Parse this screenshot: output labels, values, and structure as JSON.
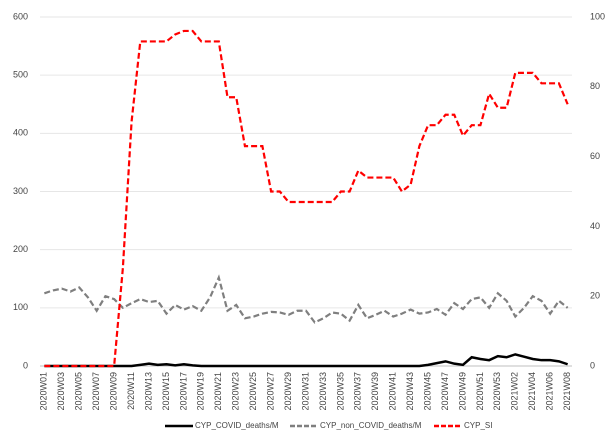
{
  "chart_data": {
    "type": "line",
    "categories": [
      "2020W01",
      null,
      "2020W03",
      null,
      "2020W05",
      null,
      "2020W07",
      null,
      "2020W09",
      null,
      "2020W11",
      null,
      "2020W13",
      null,
      "2020W15",
      null,
      "2020W17",
      null,
      "2020W19",
      null,
      "2020W21",
      null,
      "2020W23",
      null,
      "2020W25",
      null,
      "2020W27",
      null,
      "2020W29",
      null,
      "2020W31",
      null,
      "2020W33",
      null,
      "2020W35",
      null,
      "2020W37",
      null,
      "2020W39",
      null,
      "2020W41",
      null,
      "2020W43",
      null,
      "2020W45",
      null,
      "2020W47",
      null,
      "2020W49",
      null,
      "2020W51",
      null,
      "2020W53",
      null,
      "2021W02",
      null,
      "2021W04",
      null,
      "2021W06",
      null,
      "2021W08"
    ],
    "series": [
      {
        "name": "CYP_COVID_deaths/M",
        "color": "#000000",
        "line_style": "solid",
        "axis": "y",
        "values": [
          0,
          0,
          0,
          0,
          0,
          0,
          0,
          0,
          0,
          0,
          0,
          2,
          4,
          2,
          3,
          1,
          3,
          1,
          0,
          0,
          0,
          0,
          0,
          0,
          0,
          0,
          0,
          0,
          0,
          0,
          0,
          0,
          0,
          0,
          0,
          0,
          0,
          0,
          0,
          0,
          0,
          0,
          0,
          0,
          2,
          5,
          8,
          4,
          2,
          15,
          12,
          10,
          17,
          15,
          20,
          16,
          12,
          10,
          10,
          8,
          3
        ]
      },
      {
        "name": "CYP_non_COVID_deaths/M",
        "color": "#7f7f7f",
        "line_style": "dashed",
        "axis": "y",
        "values": [
          125,
          130,
          133,
          128,
          135,
          118,
          95,
          120,
          115,
          100,
          108,
          115,
          110,
          112,
          90,
          105,
          97,
          103,
          95,
          118,
          152,
          95,
          105,
          82,
          85,
          90,
          93,
          92,
          88,
          95,
          95,
          75,
          82,
          92,
          90,
          78,
          105,
          82,
          88,
          95,
          85,
          90,
          97,
          90,
          92,
          98,
          88,
          108,
          98,
          115,
          118,
          100,
          125,
          112,
          85,
          100,
          120,
          112,
          90,
          112,
          100
        ]
      },
      {
        "name": "CYP_SI",
        "color": "#ff0000",
        "line_style": "dashed",
        "axis": "y2",
        "values": [
          0,
          0,
          0,
          0,
          0,
          0,
          0,
          0,
          0,
          28,
          70,
          93,
          93,
          93,
          93,
          95,
          96,
          96,
          93,
          93,
          93,
          77,
          77,
          63,
          63,
          63,
          50,
          50,
          47,
          47,
          47,
          47,
          47,
          47,
          50,
          50,
          56,
          54,
          54,
          54,
          54,
          50,
          52,
          63,
          69,
          69,
          72,
          72,
          66,
          69,
          69,
          78,
          74,
          74,
          84,
          84,
          84,
          81,
          81,
          81,
          75
        ]
      }
    ],
    "ylim": [
      0,
      600
    ],
    "yticks": [
      0,
      100,
      200,
      300,
      400,
      500,
      600
    ],
    "y2lim": [
      0,
      100
    ],
    "y2ticks": [
      0,
      20,
      40,
      60,
      80,
      100
    ],
    "grid": true,
    "legend": "bottom"
  }
}
